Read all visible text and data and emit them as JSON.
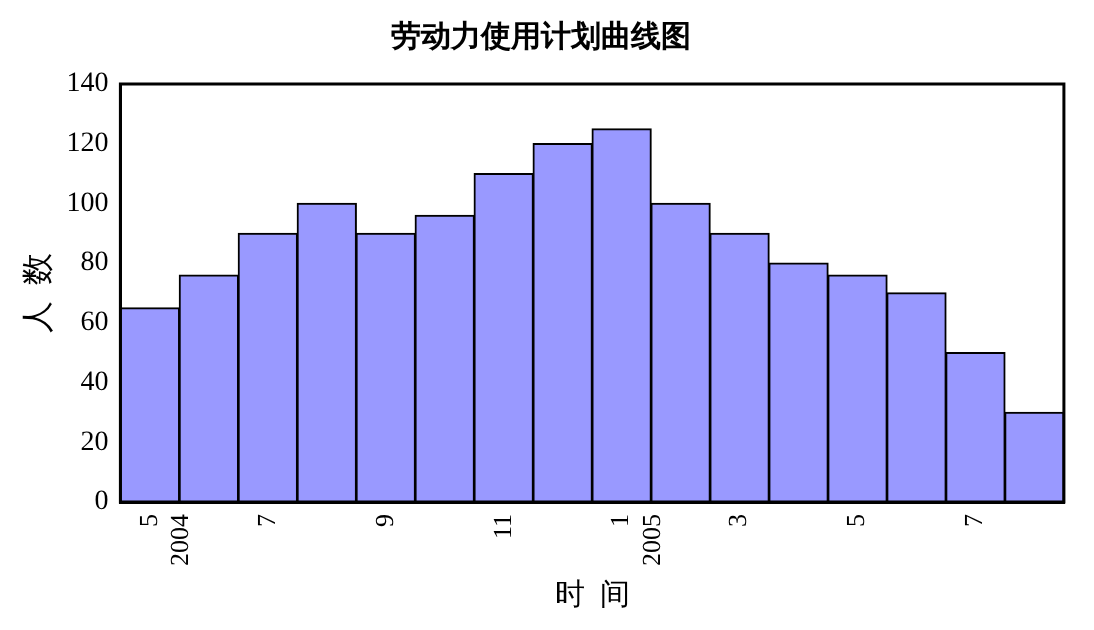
{
  "chart_data": {
    "type": "bar",
    "title": "劳动力使用计划曲线图",
    "xlabel": "时  间",
    "ylabel": "人  数",
    "categories": [
      "5\n2004",
      null,
      "7",
      null,
      "9",
      null,
      "11",
      null,
      "1\n2005",
      null,
      "3",
      null,
      "5",
      null,
      "7",
      null
    ],
    "values": [
      65,
      76,
      90,
      100,
      90,
      96,
      110,
      120,
      125,
      100,
      90,
      80,
      76,
      70,
      50,
      30
    ],
    "color": "#9999ff",
    "ylim": [
      0,
      140
    ],
    "yticks": [
      0,
      20,
      40,
      60,
      80,
      100,
      120,
      140
    ],
    "grid": false,
    "legend": false
  }
}
